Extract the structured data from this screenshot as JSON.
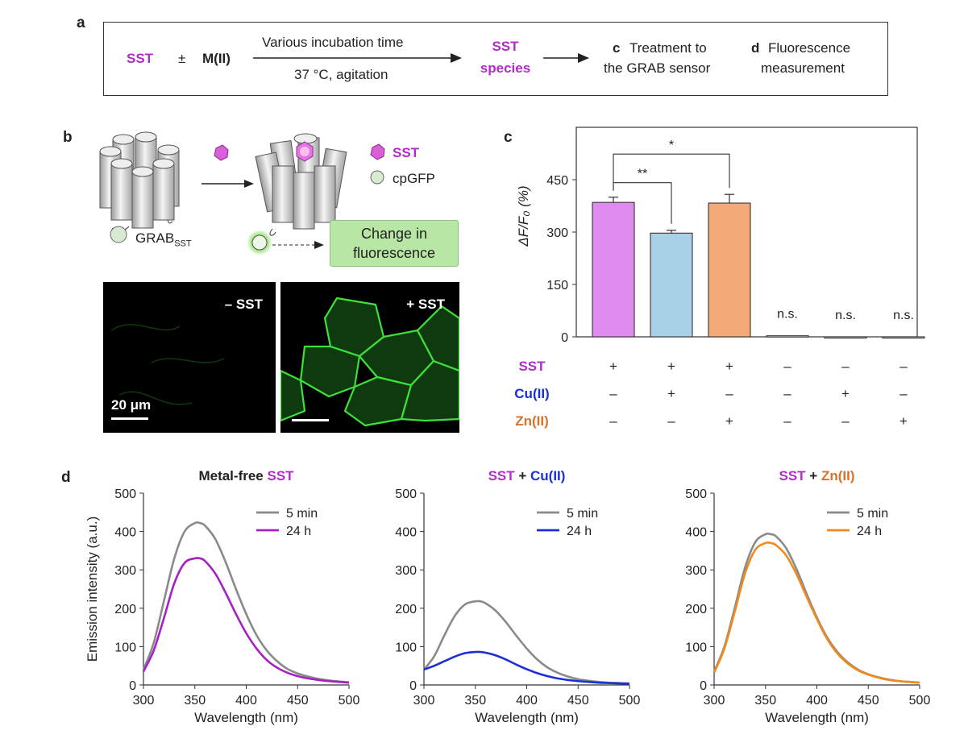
{
  "panel_a": {
    "label": "a",
    "sst": "SST",
    "pm": "±",
    "metal": "M(II)",
    "arrow_top": "Various incubation time",
    "arrow_bottom": "37 °C, agitation",
    "species_1": "SST",
    "species_2": "species",
    "c_letter": "c",
    "c_text_1": "Treatment to",
    "c_text_2": "the GRAB sensor",
    "d_letter": "d",
    "d_text_1": "Fluorescence",
    "d_text_2": "measurement"
  },
  "panel_b": {
    "label": "b",
    "grab_label": "GRAB",
    "grab_sub": "SST",
    "legend_sst": "SST",
    "legend_cpgfp": "cpGFP",
    "change_1": "Change in",
    "change_2": "fluorescence",
    "micro_left_label": "– SST",
    "micro_right_label": "+ SST",
    "scale_label": "20 μm",
    "colors": {
      "sst": "#d95ed8",
      "cpgfp": "#d8ebd2",
      "fluorescence": "#b8e6a4"
    }
  },
  "panel_c": {
    "label": "c",
    "chart_data": {
      "type": "bar",
      "ylabel": "ΔF/F₀ (%)",
      "ylim": [
        0,
        600
      ],
      "yticks": [
        0,
        150,
        300,
        450
      ],
      "values": [
        385,
        297,
        383,
        3,
        0,
        0
      ],
      "errors": [
        15,
        8,
        25,
        0,
        0,
        0
      ],
      "colors": [
        "#e08af0",
        "#a8d1e7",
        "#f3aa78",
        "#ffffff",
        "#ffffff",
        "#ffffff"
      ],
      "annotations": [
        "",
        "",
        "",
        "n.s.",
        "n.s.",
        "n.s."
      ],
      "significance": [
        {
          "from": 0,
          "to": 1,
          "label": "**"
        },
        {
          "from": 0,
          "to": 2,
          "label": "*"
        }
      ],
      "conditions": [
        {
          "name": "SST",
          "color": "#b12cc9",
          "signs": [
            "+",
            "+",
            "+",
            "–",
            "–",
            "–"
          ]
        },
        {
          "name": "Cu(II)",
          "color": "#1a2fd6",
          "signs": [
            "–",
            "+",
            "–",
            "–",
            "+",
            "–"
          ]
        },
        {
          "name": "Zn(II)",
          "color": "#d9712a",
          "signs": [
            "–",
            "–",
            "+",
            "–",
            "–",
            "+"
          ]
        }
      ]
    }
  },
  "panel_d": {
    "label": "d",
    "chart_data": [
      {
        "type": "line",
        "title_parts": [
          {
            "text": "Metal-free ",
            "color": "#222222"
          },
          {
            "text": "SST",
            "color": "#b12cc9"
          }
        ],
        "xlabel": "Wavelength (nm)",
        "ylabel": "Emission intensity (a.u.)",
        "xlim": [
          300,
          500
        ],
        "ylim": [
          0,
          500
        ],
        "xticks": [
          300,
          350,
          400,
          450,
          500
        ],
        "yticks": [
          0,
          100,
          200,
          300,
          400,
          500
        ],
        "x": [
          300,
          310,
          320,
          330,
          340,
          350,
          355,
          360,
          370,
          380,
          390,
          400,
          410,
          420,
          430,
          440,
          450,
          460,
          470,
          480,
          490,
          500
        ],
        "series": [
          {
            "name": "5 min",
            "color": "#8a8a8a",
            "values": [
              40,
              110,
              220,
              330,
              400,
              422,
              422,
              415,
              380,
              320,
              250,
              185,
              130,
              90,
              62,
              42,
              30,
              22,
              16,
              12,
              9,
              7
            ]
          },
          {
            "name": "24 h",
            "color": "#a521c4",
            "values": [
              35,
              90,
              175,
              265,
              318,
              330,
              330,
              323,
              290,
              240,
              185,
              135,
              95,
              65,
              45,
              32,
              23,
              17,
              13,
              10,
              8,
              6
            ]
          }
        ],
        "legend": "top-right"
      },
      {
        "type": "line",
        "title_parts": [
          {
            "text": "SST",
            "color": "#b12cc9"
          },
          {
            "text": " + ",
            "color": "#222222"
          },
          {
            "text": "Cu(II)",
            "color": "#1a2fd6"
          }
        ],
        "xlabel": "Wavelength (nm)",
        "ylabel": "",
        "xlim": [
          300,
          500
        ],
        "ylim": [
          0,
          500
        ],
        "xticks": [
          300,
          350,
          400,
          450,
          500
        ],
        "yticks": [
          0,
          100,
          200,
          300,
          400,
          500
        ],
        "x": [
          300,
          310,
          320,
          330,
          340,
          350,
          355,
          360,
          370,
          380,
          390,
          400,
          410,
          420,
          430,
          440,
          450,
          460,
          470,
          480,
          490,
          500
        ],
        "series": [
          {
            "name": "5 min",
            "color": "#8a8a8a",
            "values": [
              40,
              75,
              130,
              180,
              210,
              218,
              218,
              213,
              193,
              163,
              128,
              95,
              67,
              46,
              32,
              22,
              15,
              11,
              8,
              6,
              5,
              4
            ]
          },
          {
            "name": "24 h",
            "color": "#1a2fd6",
            "values": [
              40,
              50,
              62,
              74,
              83,
              86,
              86,
              84,
              77,
              66,
              53,
              41,
              31,
              23,
              17,
              13,
              10,
              8,
              6,
              5,
              4,
              3
            ]
          }
        ],
        "legend": "top-right"
      },
      {
        "type": "line",
        "title_parts": [
          {
            "text": "SST",
            "color": "#b12cc9"
          },
          {
            "text": " + ",
            "color": "#222222"
          },
          {
            "text": "Zn(II)",
            "color": "#d9712a"
          }
        ],
        "xlabel": "Wavelength (nm)",
        "ylabel": "",
        "xlim": [
          300,
          500
        ],
        "ylim": [
          0,
          500
        ],
        "xticks": [
          300,
          350,
          400,
          450,
          500
        ],
        "yticks": [
          0,
          100,
          200,
          300,
          400,
          500
        ],
        "x": [
          300,
          310,
          320,
          330,
          340,
          350,
          355,
          360,
          370,
          380,
          390,
          400,
          410,
          420,
          430,
          440,
          450,
          460,
          470,
          480,
          490,
          500
        ],
        "series": [
          {
            "name": "5 min",
            "color": "#8a8a8a",
            "values": [
              35,
              100,
              200,
              305,
              372,
              393,
              393,
              388,
              357,
              303,
              238,
              176,
              124,
              86,
              59,
              40,
              28,
              20,
              14,
              10,
              8,
              6
            ]
          },
          {
            "name": "24 h",
            "color": "#f08a1c",
            "values": [
              32,
              95,
              190,
              290,
              352,
              370,
              370,
              365,
              338,
              290,
              230,
              172,
              120,
              82,
              56,
              38,
              27,
              19,
              13,
              10,
              8,
              6
            ]
          }
        ],
        "legend": "top-right"
      }
    ]
  }
}
